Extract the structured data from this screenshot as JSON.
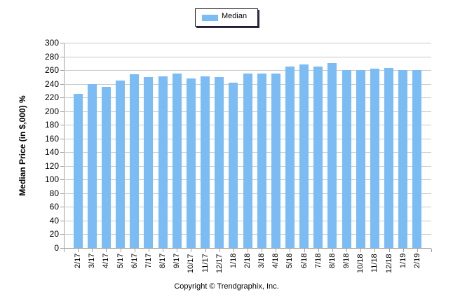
{
  "legend": {
    "label": "Median",
    "color": "#7bbcf5"
  },
  "footer": {
    "copyright": "Copyright © Trendgraphix, Inc."
  },
  "axis": {
    "ylabel": "Median Price (in $,000) %",
    "yticks": [
      "0",
      "20",
      "40",
      "60",
      "80",
      "100",
      "120",
      "140",
      "160",
      "180",
      "200",
      "220",
      "240",
      "260",
      "280",
      "300"
    ]
  },
  "chart_data": {
    "type": "bar",
    "title": "",
    "xlabel": "",
    "ylabel": "Median Price (in $,000) %",
    "ylim": [
      0,
      300
    ],
    "ytick_step": 20,
    "grid": true,
    "legend_position": "top-center",
    "categories": [
      "2/17",
      "3/17",
      "4/17",
      "5/17",
      "6/17",
      "7/17",
      "8/17",
      "9/17",
      "10/17",
      "11/17",
      "12/17",
      "1/18",
      "2/18",
      "3/18",
      "4/18",
      "5/18",
      "6/18",
      "7/18",
      "8/18",
      "9/18",
      "10/18",
      "11/18",
      "12/18",
      "1/19",
      "2/19"
    ],
    "series": [
      {
        "name": "Median",
        "color": "#7bbcf5",
        "values": [
          225,
          240,
          235,
          245,
          254,
          250,
          251,
          255,
          248,
          251,
          250,
          242,
          255,
          255,
          255,
          265,
          268,
          265,
          270,
          260,
          260,
          262,
          263,
          260,
          260
        ]
      }
    ]
  }
}
